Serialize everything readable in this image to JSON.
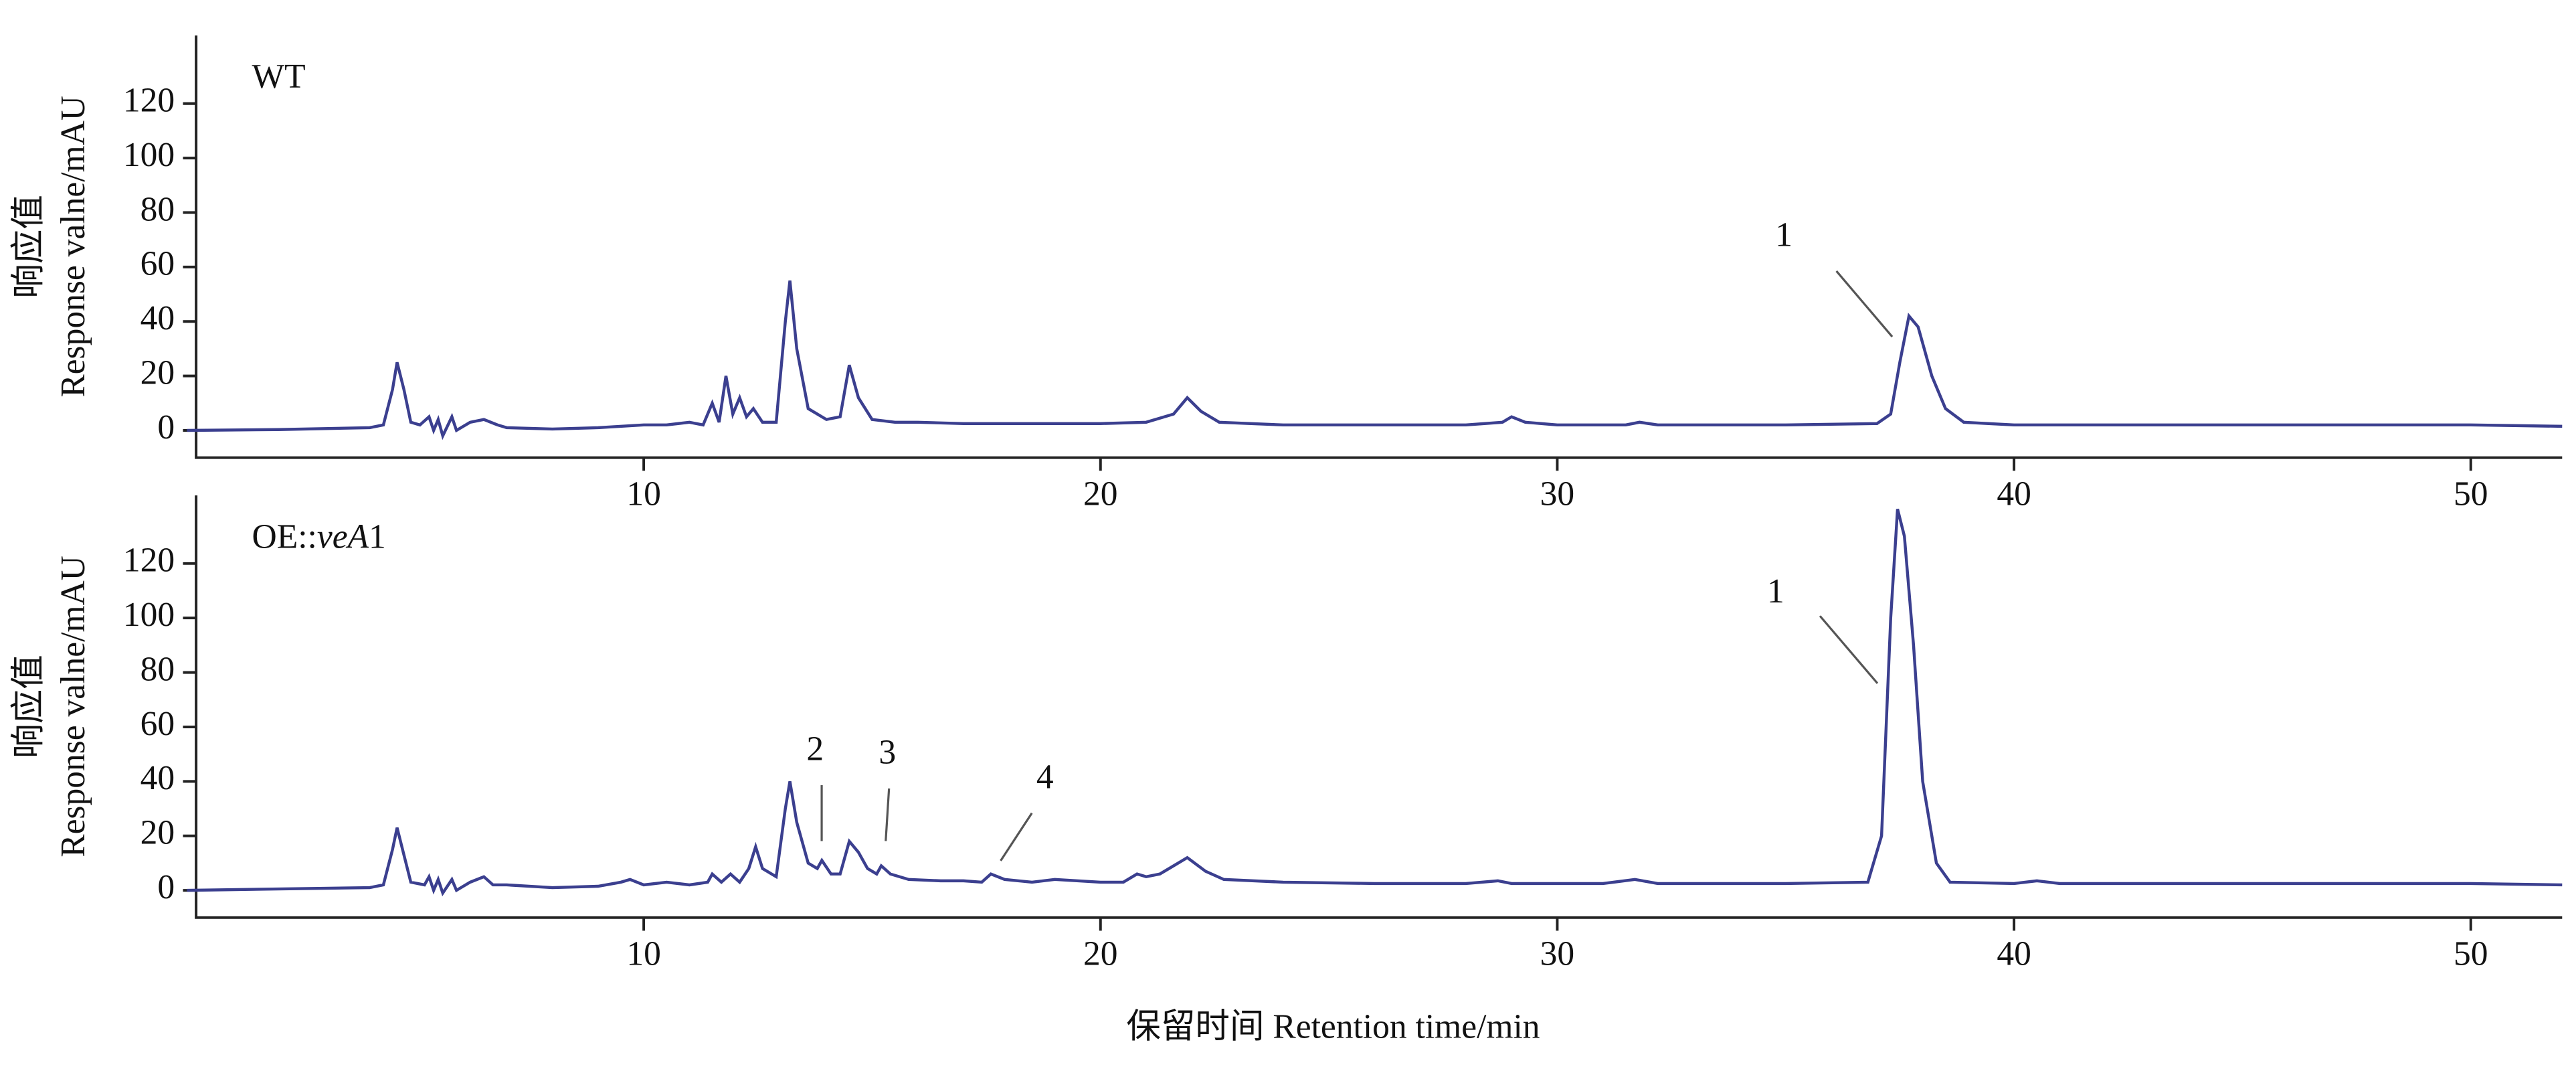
{
  "chart_data": [
    {
      "type": "line",
      "label_parts": [
        "WT"
      ],
      "ylabel": [
        "响应值",
        "Response valne/mAU"
      ],
      "color": "#3b3f8f",
      "xlim": [
        0.2,
        52
      ],
      "ylim": [
        -10,
        145
      ],
      "xticks": [
        10,
        20,
        30,
        40,
        50
      ],
      "yticks": [
        0,
        20,
        40,
        60,
        80,
        100,
        120
      ],
      "annotations": [
        "1"
      ],
      "x": [
        0,
        2,
        4,
        4.3,
        4.5,
        4.6,
        4.75,
        4.9,
        5.1,
        5.3,
        5.4,
        5.5,
        5.6,
        5.8,
        5.9,
        6.2,
        6.5,
        6.8,
        7,
        8,
        9,
        10,
        10.5,
        11,
        11.3,
        11.5,
        11.65,
        11.8,
        11.95,
        12.1,
        12.25,
        12.4,
        12.6,
        12.9,
        13.1,
        13.2,
        13.35,
        13.6,
        14,
        14.3,
        14.5,
        14.7,
        15,
        15.5,
        16,
        17,
        18,
        20,
        21,
        21.6,
        21.9,
        22.2,
        22.6,
        24,
        26,
        28,
        28.8,
        29,
        29.3,
        30,
        31.5,
        31.8,
        32.2,
        35,
        37,
        37.3,
        37.5,
        37.7,
        37.9,
        38.2,
        38.5,
        38.9,
        40,
        45,
        50,
        52
      ],
      "values": [
        0,
        0.3,
        1,
        2,
        15,
        25,
        15,
        3,
        2,
        5,
        0,
        4,
        -2,
        5,
        0,
        3,
        4,
        2,
        1,
        0.5,
        1,
        2,
        2,
        3,
        2,
        10,
        3,
        20,
        6,
        12,
        5,
        8,
        3,
        3,
        40,
        55,
        30,
        8,
        4,
        5,
        24,
        12,
        4,
        3,
        3,
        2.5,
        2.5,
        2.5,
        3,
        6,
        12,
        7,
        3,
        2,
        2,
        2,
        3,
        5,
        3,
        2,
        2,
        3,
        2,
        2,
        2.5,
        6,
        25,
        42,
        38,
        20,
        8,
        3,
        2,
        2,
        2,
        1.5
      ]
    },
    {
      "type": "line",
      "label_parts": [
        "OE::",
        "veA",
        "1"
      ],
      "ylabel": [
        "响应值",
        "Response valne/mAU"
      ],
      "xlabel": "保留时间 Retention time/min",
      "color": "#3b3f8f",
      "xlim": [
        0.2,
        52
      ],
      "ylim": [
        -10,
        145
      ],
      "xticks": [
        10,
        20,
        30,
        40,
        50
      ],
      "yticks": [
        0,
        20,
        40,
        60,
        80,
        100,
        120
      ],
      "annotations": [
        "1",
        "2",
        "3",
        "4"
      ],
      "x": [
        0,
        4,
        4.3,
        4.5,
        4.6,
        4.75,
        4.9,
        5.2,
        5.3,
        5.4,
        5.5,
        5.6,
        5.8,
        5.9,
        6.2,
        6.5,
        6.7,
        7,
        8,
        9,
        9.5,
        9.7,
        10,
        10.5,
        11,
        11.4,
        11.5,
        11.7,
        11.9,
        12.1,
        12.3,
        12.45,
        12.6,
        12.9,
        13.1,
        13.2,
        13.35,
        13.6,
        13.8,
        13.9,
        14.1,
        14.3,
        14.5,
        14.7,
        14.9,
        15.1,
        15.2,
        15.4,
        15.8,
        16.5,
        17,
        17.4,
        17.6,
        17.9,
        18.5,
        19,
        20,
        20.5,
        20.8,
        21,
        21.3,
        21.5,
        21.9,
        22.3,
        22.7,
        24,
        26,
        28,
        28.7,
        29,
        31,
        31.7,
        32.2,
        35,
        36.8,
        37.1,
        37.3,
        37.45,
        37.6,
        37.8,
        38,
        38.3,
        38.6,
        40,
        40.5,
        41,
        45,
        50,
        52
      ],
      "values": [
        0,
        1,
        2,
        15,
        23,
        13,
        3,
        2,
        5,
        0,
        4,
        -1,
        4,
        0,
        3,
        5,
        2,
        2,
        1,
        1.5,
        3,
        4,
        2,
        3,
        2,
        3,
        6,
        3,
        6,
        3,
        8,
        16,
        8,
        5,
        30,
        40,
        25,
        10,
        8,
        11,
        6,
        6,
        18,
        14,
        8,
        6,
        9,
        6,
        4,
        3.5,
        3.5,
        3,
        6,
        4,
        3,
        4,
        3,
        3,
        6,
        5,
        6,
        8,
        12,
        7,
        4,
        3,
        2.5,
        2.5,
        3.5,
        2.5,
        2.5,
        4,
        2.5,
        2.5,
        3,
        20,
        100,
        140,
        130,
        90,
        40,
        10,
        3,
        2.5,
        3.5,
        2.5,
        2.5,
        2.5,
        2
      ]
    }
  ]
}
